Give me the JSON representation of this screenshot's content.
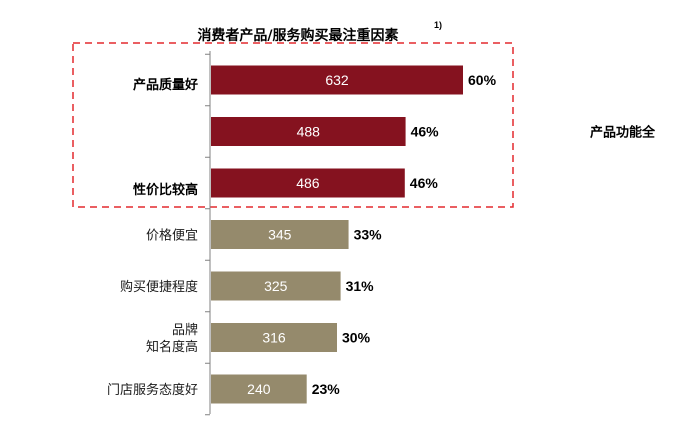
{
  "chart_data": {
    "type": "bar",
    "orientation": "horizontal",
    "title": "消费者产品/服务购买最注重因素",
    "title_footnote": "1)",
    "categories": [
      {
        "label_lines": [
          "产品质量好"
        ],
        "highlight": true
      },
      {
        "label_lines": [
          "产品功能全"
        ],
        "highlight": true
      },
      {
        "label_lines": [
          "性价比较高"
        ],
        "highlight": true
      },
      {
        "label_lines": [
          "价格便宜"
        ],
        "highlight": false
      },
      {
        "label_lines": [
          "购买便捷程度"
        ],
        "highlight": false
      },
      {
        "label_lines": [
          "品牌",
          "知名度高"
        ],
        "highlight": false
      },
      {
        "label_lines": [
          "门店服务态度好"
        ],
        "highlight": false
      }
    ],
    "values": [
      632,
      488,
      486,
      345,
      325,
      316,
      240
    ],
    "value_labels": [
      "632",
      "488",
      "486",
      "345",
      "325",
      "316",
      "240"
    ],
    "percent_labels": [
      "60%",
      "46%",
      "46%",
      "33%",
      "31%",
      "30%",
      "23%"
    ],
    "colors": {
      "highlight": "#85121f",
      "normal": "#958a6c",
      "box": "#e32a2f",
      "axis": "#808080"
    },
    "highlight_box": "dashed",
    "grid": false,
    "legend": "none"
  }
}
